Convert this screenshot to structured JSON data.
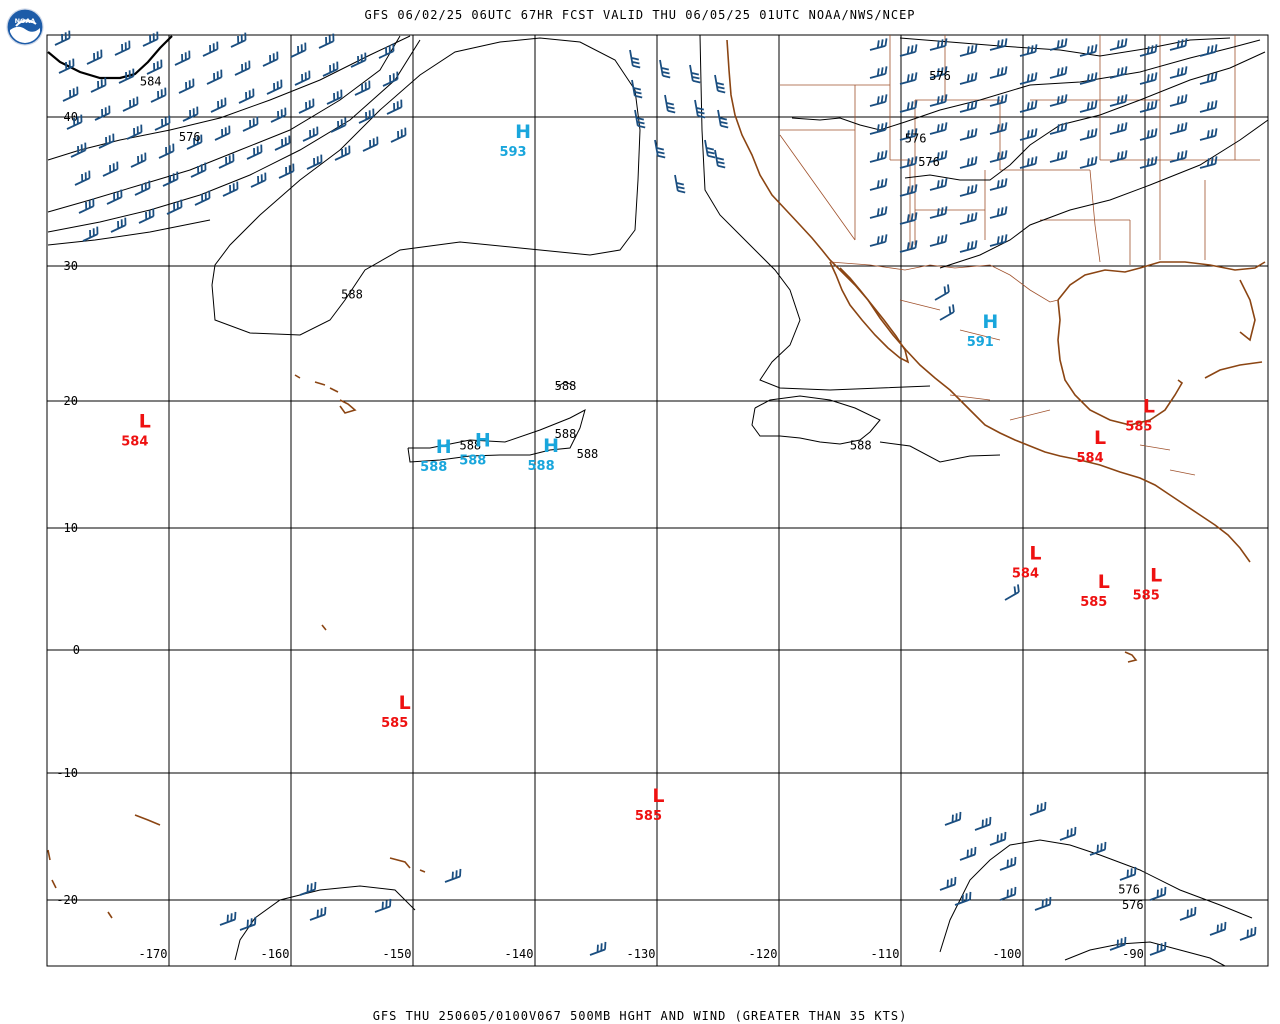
{
  "header": {
    "title": "GFS 06/02/25 06UTC 67HR FCST VALID THU 06/05/25 01UTC NOAA/NWS/NCEP",
    "logo_text": "NOAA"
  },
  "footer": {
    "title": "GFS THU 250605/0100V067 500MB HGHT AND WIND (GREATER THAN 35 KTS)"
  },
  "colors": {
    "grid": "#000000",
    "coast": "#8b4513",
    "border": "#a0522d",
    "contour": "#000000",
    "barb": "#1a4e80",
    "high": "#19a6dc",
    "low": "#ee1111"
  },
  "map": {
    "projection": "mercator",
    "lon_range": [
      -176,
      -88
    ],
    "lat_range": [
      -23,
      46
    ],
    "latitude_labels": [
      "40",
      "30",
      "20",
      "10",
      "0",
      "-10",
      "-20"
    ],
    "longitude_labels": [
      "-170",
      "-160",
      "-150",
      "-140",
      "-130",
      "-120",
      "-110",
      "-100",
      "-90"
    ]
  },
  "contour_labels": [
    {
      "text": "584",
      "lon": -171.5,
      "lat": 42.3
    },
    {
      "text": "576",
      "lon": -168.3,
      "lat": 38.4
    },
    {
      "text": "588",
      "lon": -155,
      "lat": 27.6
    },
    {
      "text": "576",
      "lon": -106.8,
      "lat": 42.7
    },
    {
      "text": "576",
      "lon": -108.8,
      "lat": 38.3
    },
    {
      "text": "576",
      "lon": -107.7,
      "lat": 36.7
    },
    {
      "text": "588",
      "lon": -137.5,
      "lat": 20.8
    },
    {
      "text": "588",
      "lon": -137.5,
      "lat": 17.1
    },
    {
      "text": "588",
      "lon": -145.3,
      "lat": 16.2
    },
    {
      "text": "588",
      "lon": -135.7,
      "lat": 15.5
    },
    {
      "text": "588",
      "lon": -113.3,
      "lat": 16.2
    },
    {
      "text": "576",
      "lon": -91.3,
      "lat": -19.5
    },
    {
      "text": "576",
      "lon": -91.0,
      "lat": -20.4
    }
  ],
  "highs": [
    {
      "letter": "H",
      "value": "593",
      "lon": -141.8,
      "lat": 38.6
    },
    {
      "letter": "H",
      "value": "591",
      "lon": -103.5,
      "lat": 25.4
    },
    {
      "letter": "H",
      "value": "588",
      "lon": -148.3,
      "lat": 15.9
    },
    {
      "letter": "H",
      "value": "588",
      "lon": -145.1,
      "lat": 16.4
    },
    {
      "letter": "H",
      "value": "588",
      "lon": -139.5,
      "lat": 16.0
    }
  ],
  "lows": [
    {
      "letter": "L",
      "value": "584",
      "lon": -172.8,
      "lat": 17.9
    },
    {
      "letter": "L",
      "value": "585",
      "lon": -90.5,
      "lat": 19.1
    },
    {
      "letter": "L",
      "value": "584",
      "lon": -94.5,
      "lat": 16.6
    },
    {
      "letter": "L",
      "value": "584",
      "lon": -99.8,
      "lat": 7.4
    },
    {
      "letter": "L",
      "value": "585",
      "lon": -94.2,
      "lat": 5.1
    },
    {
      "letter": "L",
      "value": "585",
      "lon": -89.9,
      "lat": 5.6
    },
    {
      "letter": "L",
      "value": "585",
      "lon": -151.5,
      "lat": -4.8
    },
    {
      "letter": "L",
      "value": "585",
      "lon": -130.7,
      "lat": -12.3
    }
  ]
}
